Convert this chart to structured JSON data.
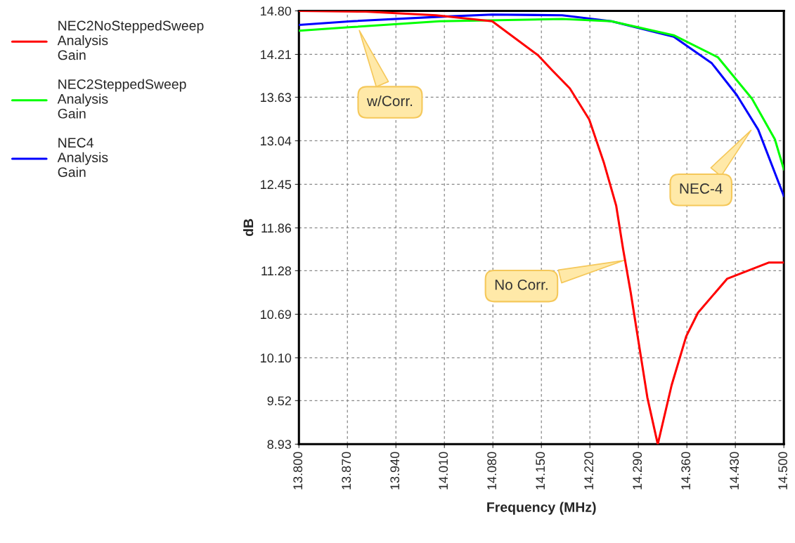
{
  "chart_data": {
    "type": "line",
    "xlabel": "Frequency (MHz)",
    "ylabel": "dB",
    "xlim": [
      13.8,
      14.5
    ],
    "xticks": [
      {
        "value": 13.8,
        "label": "13.800"
      },
      {
        "value": 13.87,
        "label": "13.870"
      },
      {
        "value": 13.94,
        "label": "13.940"
      },
      {
        "value": 14.01,
        "label": "14.010"
      },
      {
        "value": 14.08,
        "label": "14.080"
      },
      {
        "value": 14.15,
        "label": "14.150"
      },
      {
        "value": 14.22,
        "label": "14.220"
      },
      {
        "value": 14.29,
        "label": "14.290"
      },
      {
        "value": 14.36,
        "label": "14.360"
      },
      {
        "value": 14.43,
        "label": "14.430"
      },
      {
        "value": 14.5,
        "label": "14.500"
      }
    ],
    "ylim": [
      8.93,
      14.8
    ],
    "yticks": [
      8.93,
      9.52,
      {
        "value": 10.1,
        "label": "10.10"
      },
      10.69,
      11.28,
      11.86,
      12.45,
      13.04,
      13.63,
      14.21,
      {
        "value": 14.8,
        "label": "14.80"
      }
    ],
    "grid": true,
    "legend": "left",
    "marker": "none",
    "line_style": "solid",
    "series": [
      {
        "name": "NEC2NoSteppedSweep\nAnalysis\nGain",
        "color": "#ff0000",
        "x": [
          13.8,
          13.896,
          13.998,
          14.079,
          14.145,
          14.166,
          14.191,
          14.219,
          14.24,
          14.258,
          14.268,
          14.279,
          14.289,
          14.303,
          14.318,
          14.338,
          14.359,
          14.376,
          14.418,
          14.478,
          14.5
        ],
        "values": [
          14.8,
          14.79,
          14.74,
          14.66,
          14.2,
          13.99,
          13.75,
          13.33,
          12.75,
          12.16,
          11.57,
          10.98,
          10.39,
          9.56,
          8.93,
          9.73,
          10.39,
          10.71,
          11.17,
          11.39,
          11.39
        ]
      },
      {
        "name": "NEC2SteppedSweep\nAnalysis\nGain",
        "color": "#00ff00",
        "x": [
          13.8,
          13.876,
          14.003,
          14.18,
          14.251,
          14.341,
          14.405,
          14.454,
          14.487,
          14.5
        ],
        "values": [
          14.53,
          14.58,
          14.66,
          14.69,
          14.66,
          14.47,
          14.17,
          13.61,
          13.06,
          12.65
        ]
      },
      {
        "name": "NEC4\nAnalysis\nGain",
        "color": "#0000ff",
        "x": [
          13.8,
          13.876,
          14.003,
          14.079,
          14.18,
          14.251,
          14.341,
          14.396,
          14.432,
          14.463,
          14.5
        ],
        "values": [
          14.61,
          14.66,
          14.72,
          14.75,
          14.74,
          14.66,
          14.45,
          14.09,
          13.66,
          13.19,
          12.29
        ]
      }
    ],
    "annotations": [
      "w/Corr.",
      "NEC-4",
      "No Corr."
    ]
  }
}
